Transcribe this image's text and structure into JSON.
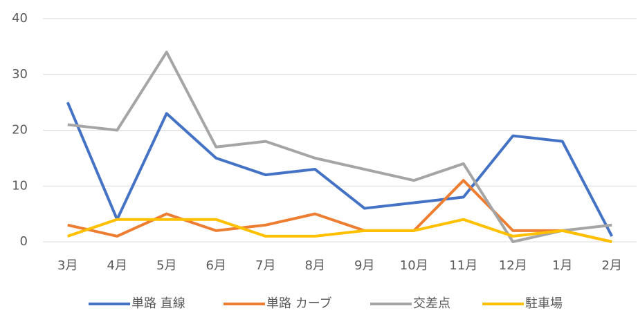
{
  "chart_data": {
    "type": "line",
    "categories": [
      "3月",
      "4月",
      "5月",
      "6月",
      "7月",
      "8月",
      "9月",
      "10月",
      "11月",
      "12月",
      "1月",
      "2月"
    ],
    "series": [
      {
        "name": "単路 直線",
        "color": "#4472c4",
        "values": [
          25,
          4,
          23,
          15,
          12,
          13,
          6,
          7,
          8,
          19,
          18,
          1
        ]
      },
      {
        "name": "単路 カーブ",
        "color": "#ed7d31",
        "values": [
          3,
          1,
          5,
          2,
          3,
          5,
          2,
          2,
          11,
          2,
          2,
          0
        ]
      },
      {
        "name": "交差点",
        "color": "#a5a5a5",
        "values": [
          21,
          20,
          34,
          17,
          18,
          15,
          13,
          11,
          14,
          0,
          2,
          3
        ]
      },
      {
        "name": "駐車場",
        "color": "#ffc000",
        "values": [
          1,
          4,
          4,
          4,
          1,
          1,
          2,
          2,
          4,
          1,
          2,
          0
        ]
      }
    ],
    "ylim": [
      0,
      40
    ],
    "yticks": [
      0,
      10,
      20,
      30,
      40
    ],
    "grid": true,
    "legend": "bottom"
  }
}
